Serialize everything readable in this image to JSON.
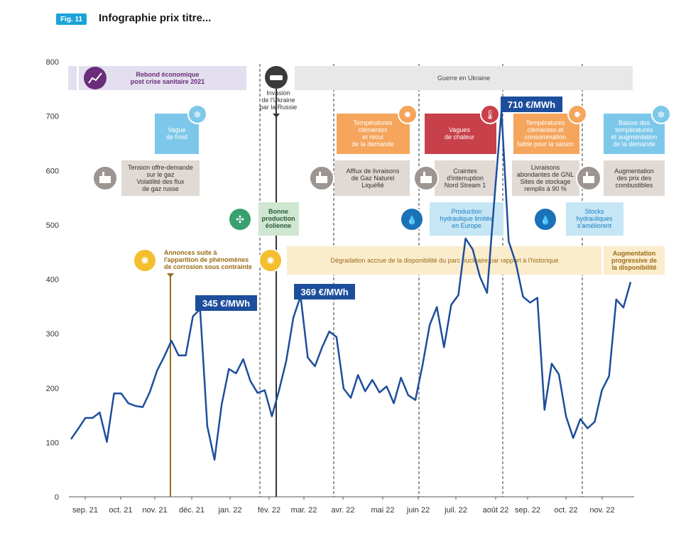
{
  "header": {
    "fig_label": "Fig. 11",
    "title": "Infographie prix titre..."
  },
  "colors": {
    "line": "#1d4e9c",
    "purple": "#6b2c7a",
    "orange": "#f5a55c",
    "red": "#c8404a",
    "blue": "#7dc8ea",
    "grey": "#e0d9d4",
    "green": "#cfe6d0",
    "yellow": "#fbeccc",
    "gold": "#9a6c16",
    "badge": "#1aa3d9"
  },
  "chart_data": {
    "type": "line",
    "title": "Infographie prix titre...",
    "ylim": [
      0,
      800
    ],
    "y_ticks": [
      "0",
      "100",
      "200",
      "300",
      "400",
      "500",
      "600",
      "700",
      "800"
    ],
    "x_ticks": [
      "sep. 21",
      "oct. 21",
      "nov. 21",
      "déc. 21",
      "jan. 22",
      "fév. 22",
      "mar. 22",
      "avr. 22",
      "mai 22",
      "juin 22",
      "juil. 22",
      "août 22",
      "sep. 22",
      "oct. 22",
      "nov. 22"
    ],
    "grid": false,
    "series": [
      {
        "values": [
          106,
          125,
          145,
          145,
          155,
          101,
          190,
          190,
          172,
          167,
          165,
          193,
          232,
          258,
          287,
          260,
          260,
          332,
          345,
          130,
          68,
          170,
          235,
          227,
          253,
          213,
          191,
          196,
          148,
          196,
          250,
          330,
          369,
          256,
          240,
          275,
          304,
          294,
          199,
          182,
          224,
          194,
          215,
          192,
          203,
          172,
          219,
          187,
          178,
          242,
          316,
          349,
          275,
          353,
          371,
          475,
          455,
          405,
          375,
          545,
          710,
          470,
          430,
          368,
          357,
          366,
          160,
          245,
          225,
          148,
          108,
          143,
          126,
          138,
          196,
          222,
          363,
          348,
          395
        ]
      }
    ],
    "callouts": [
      {
        "text": "345 €/MWh",
        "value": 345
      },
      {
        "text": "369 €/MWh",
        "value": 369
      },
      {
        "text": "710 €/MWh",
        "value": 710
      }
    ],
    "annotations": {
      "rebond": "Rebond économique post crise sanitaire 2021",
      "guerre": "Guerre en Ukraine",
      "invasion": "Invasion de l'Ukraine par la Russie",
      "vague_froid": "Vague de froid",
      "temp_clementes_1": "Températures clémentes et recul de la demande",
      "vagues_chaleur": "Vagues de chaleur",
      "temp_clementes_2": "Températures clémentes et consommation faible pour la saison",
      "baisse_temp": "Baisse des températures et augmentation de la demande",
      "tension_gaz": "Tension offre-demande sur le gaz Volatilité des flux de gaz russe",
      "afflux_gnl": "Afflux de livraisons de Gaz Naturel Liquéfié",
      "craintes": "Craintes d'interruption Nord Stream 1",
      "livraisons_gnl": "Livraisons abondantes de GNL Sites de stockage remplis à 90 %",
      "augmentation_prix": "Augmentation des prix des combustibles",
      "bonne_eolienne": "Bonne production éolienne",
      "hydraulique_limitee": "Production hydraulique limitée en Europe",
      "stocks_hydrauliques": "Stocks hydrauliques s'améliorent",
      "corrosion": "Annonces suite à l'apparition de phénomènes de corrosion sous contrainte",
      "degradation": "Dégradation accrue de la disponibilité du parc nucléaire par rapport à l'historique",
      "augmentation_dispo": "Augmentation progressive de la disponibilité"
    }
  }
}
